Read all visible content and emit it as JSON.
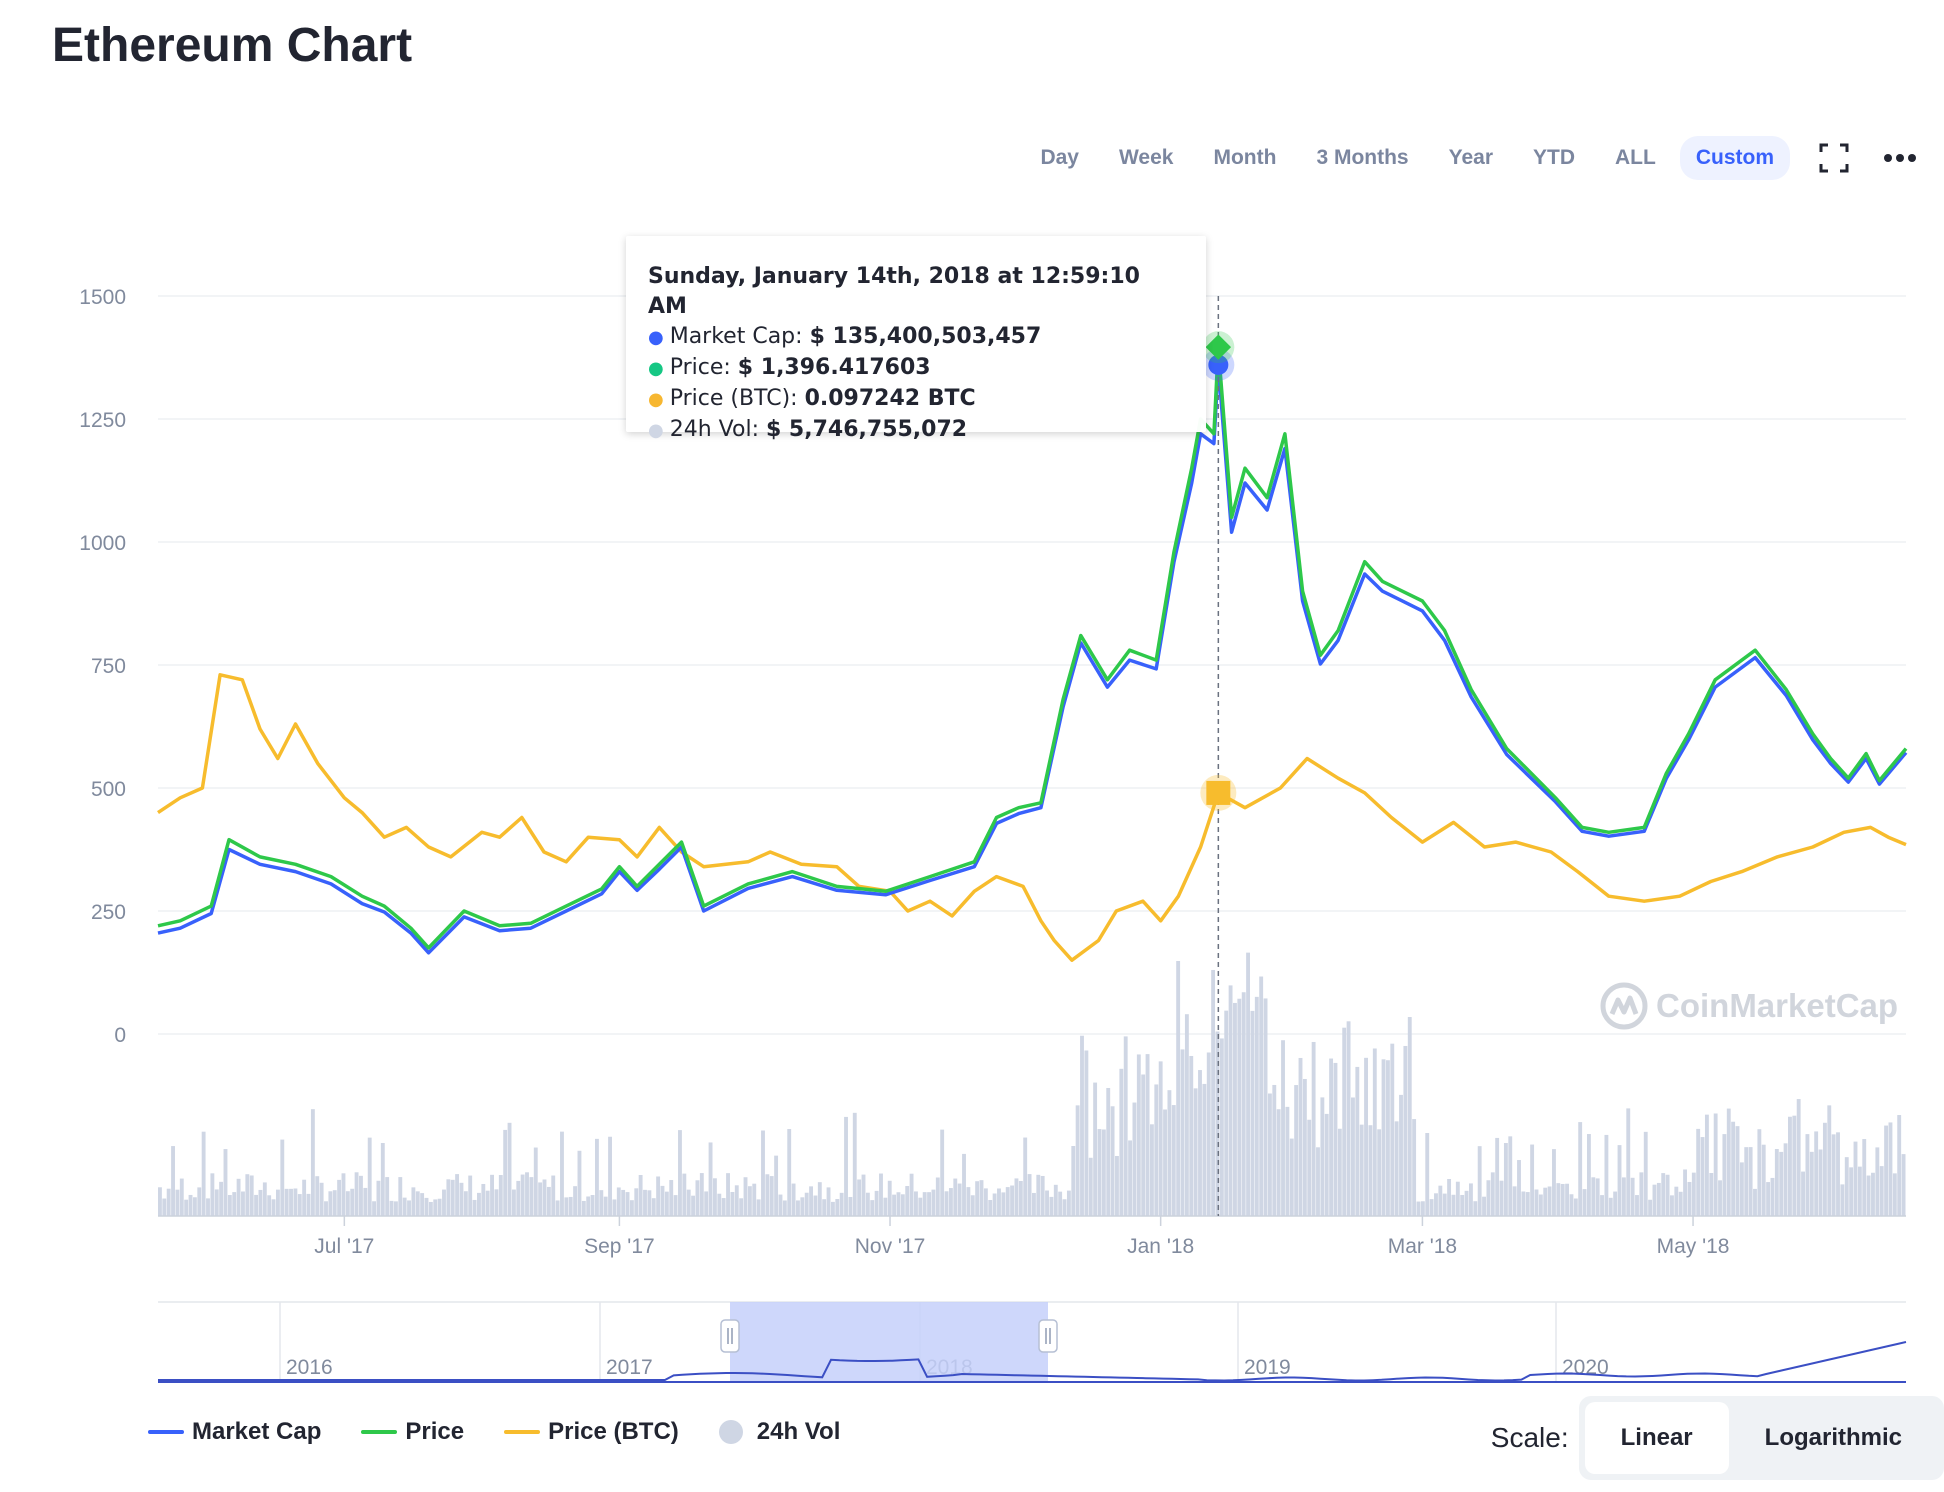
{
  "page_title": "Ethereum Chart",
  "range_buttons": [
    {
      "label": "Day"
    },
    {
      "label": "Week"
    },
    {
      "label": "Month"
    },
    {
      "label": "3 Months"
    },
    {
      "label": "Year"
    },
    {
      "label": "YTD"
    },
    {
      "label": "ALL"
    },
    {
      "label": "Custom",
      "active": true
    }
  ],
  "icons": {
    "fullscreen": "fullscreen-icon",
    "more": "more-dots-icon",
    "logo": "coinmarketcap-logo-icon"
  },
  "watermark": "CoinMarketCap",
  "tooltip": {
    "title": "Sunday, January 14th, 2018 at 12:59:10 AM",
    "rows": [
      {
        "label": "Market Cap: ",
        "value": "$ 135,400,503,457",
        "color": "#3861fb"
      },
      {
        "label": "Price: ",
        "value": "$ 1,396.417603",
        "color": "#16c784"
      },
      {
        "label": "Price (BTC): ",
        "value": "0.097242 BTC",
        "color": "#f7b731"
      },
      {
        "label": "24h Vol: ",
        "value": "$ 5,746,755,072",
        "color": "#cfd6e4"
      }
    ]
  },
  "legend": [
    {
      "label": "Market Cap",
      "color": "#3861fb",
      "kind": "line"
    },
    {
      "label": "Price",
      "color": "#16c784",
      "kind": "line"
    },
    {
      "label": "Price (BTC)",
      "color": "#f7b731",
      "kind": "line"
    },
    {
      "label": "24h Vol",
      "color": "#cfd6e4",
      "kind": "dot"
    }
  ],
  "scale": {
    "label": "Scale:",
    "options": [
      "Linear",
      "Logarithmic"
    ],
    "active": "Linear"
  },
  "colors": {
    "market_cap": "#3861fb",
    "price": "#2ec84a",
    "price_btc": "#f7bc2d",
    "volume": "#cfd6e4",
    "grid": "#eef0f3",
    "navigator_fill": "#c6d0fa"
  },
  "chart_data": {
    "type": "line",
    "x_start": "2017-05-20",
    "x_end": "2018-06-18",
    "y_ticks": [
      "1500",
      "1250",
      "1000",
      "750",
      "500",
      "250",
      "0"
    ],
    "ylim": [
      0,
      1500
    ],
    "x_ticks": [
      "Jul '17",
      "Sep '17",
      "Nov '17",
      "Jan '18",
      "Mar '18",
      "May '18"
    ],
    "grid": true,
    "series": [
      {
        "name": "Price",
        "x": [
          "2017-05-20",
          "2017-05-25",
          "2017-06-01",
          "2017-06-05",
          "2017-06-12",
          "2017-06-20",
          "2017-06-28",
          "2017-07-05",
          "2017-07-10",
          "2017-07-16",
          "2017-07-20",
          "2017-07-28",
          "2017-08-05",
          "2017-08-12",
          "2017-08-20",
          "2017-08-28",
          "2017-09-01",
          "2017-09-05",
          "2017-09-10",
          "2017-09-15",
          "2017-09-20",
          "2017-09-30",
          "2017-10-10",
          "2017-10-20",
          "2017-10-31",
          "2017-11-10",
          "2017-11-20",
          "2017-11-25",
          "2017-11-30",
          "2017-12-05",
          "2017-12-10",
          "2017-12-14",
          "2017-12-20",
          "2017-12-25",
          "2017-12-31",
          "2018-01-04",
          "2018-01-08",
          "2018-01-10",
          "2018-01-13",
          "2018-01-14",
          "2018-01-17",
          "2018-01-20",
          "2018-01-25",
          "2018-01-29",
          "2018-02-02",
          "2018-02-06",
          "2018-02-10",
          "2018-02-16",
          "2018-02-20",
          "2018-03-01",
          "2018-03-06",
          "2018-03-12",
          "2018-03-20",
          "2018-03-31",
          "2018-04-06",
          "2018-04-12",
          "2018-04-20",
          "2018-04-25",
          "2018-04-30",
          "2018-05-06",
          "2018-05-15",
          "2018-05-22",
          "2018-05-28",
          "2018-06-01",
          "2018-06-05",
          "2018-06-09",
          "2018-06-12",
          "2018-06-18"
        ],
        "values": [
          220,
          230,
          260,
          395,
          360,
          345,
          320,
          280,
          260,
          215,
          175,
          250,
          220,
          225,
          260,
          295,
          340,
          300,
          345,
          390,
          260,
          305,
          330,
          300,
          290,
          320,
          350,
          440,
          460,
          470,
          680,
          810,
          720,
          780,
          760,
          980,
          1150,
          1250,
          1220,
          1396,
          1050,
          1150,
          1090,
          1220,
          900,
          770,
          820,
          960,
          920,
          880,
          820,
          700,
          580,
          480,
          420,
          410,
          420,
          530,
          610,
          720,
          780,
          700,
          610,
          560,
          520,
          570,
          515,
          580
        ]
      },
      {
        "name": "Market Cap",
        "x": [
          "2017-05-20",
          "2017-05-25",
          "2017-06-01",
          "2017-06-05",
          "2017-06-12",
          "2017-06-20",
          "2017-06-28",
          "2017-07-05",
          "2017-07-10",
          "2017-07-16",
          "2017-07-20",
          "2017-07-28",
          "2017-08-05",
          "2017-08-12",
          "2017-08-20",
          "2017-08-28",
          "2017-09-01",
          "2017-09-05",
          "2017-09-10",
          "2017-09-15",
          "2017-09-20",
          "2017-09-30",
          "2017-10-10",
          "2017-10-20",
          "2017-10-31",
          "2017-11-10",
          "2017-11-20",
          "2017-11-25",
          "2017-11-30",
          "2017-12-05",
          "2017-12-10",
          "2017-12-14",
          "2017-12-20",
          "2017-12-25",
          "2017-12-31",
          "2018-01-04",
          "2018-01-08",
          "2018-01-10",
          "2018-01-13",
          "2018-01-14",
          "2018-01-17",
          "2018-01-20",
          "2018-01-25",
          "2018-01-29",
          "2018-02-02",
          "2018-02-06",
          "2018-02-10",
          "2018-02-16",
          "2018-02-20",
          "2018-03-01",
          "2018-03-06",
          "2018-03-12",
          "2018-03-20",
          "2018-03-31",
          "2018-04-06",
          "2018-04-12",
          "2018-04-20",
          "2018-04-25",
          "2018-04-30",
          "2018-05-06",
          "2018-05-15",
          "2018-05-22",
          "2018-05-28",
          "2018-06-01",
          "2018-06-05",
          "2018-06-09",
          "2018-06-12",
          "2018-06-18"
        ],
        "values": [
          205,
          215,
          245,
          375,
          345,
          330,
          305,
          265,
          248,
          205,
          165,
          238,
          210,
          215,
          250,
          285,
          330,
          292,
          335,
          380,
          250,
          296,
          320,
          292,
          283,
          312,
          340,
          428,
          448,
          460,
          665,
          795,
          705,
          760,
          742,
          960,
          1120,
          1220,
          1200,
          1360,
          1020,
          1120,
          1065,
          1190,
          880,
          752,
          800,
          935,
          900,
          860,
          800,
          685,
          568,
          472,
          412,
          402,
          412,
          520,
          598,
          705,
          765,
          688,
          598,
          550,
          512,
          560,
          508,
          572
        ]
      },
      {
        "name": "Price (BTC)",
        "x": [
          "2017-05-20",
          "2017-05-25",
          "2017-05-30",
          "2017-06-03",
          "2017-06-08",
          "2017-06-12",
          "2017-06-16",
          "2017-06-20",
          "2017-06-25",
          "2017-07-01",
          "2017-07-05",
          "2017-07-10",
          "2017-07-15",
          "2017-07-20",
          "2017-07-25",
          "2017-08-01",
          "2017-08-05",
          "2017-08-10",
          "2017-08-15",
          "2017-08-20",
          "2017-08-25",
          "2017-09-01",
          "2017-09-05",
          "2017-09-10",
          "2017-09-15",
          "2017-09-20",
          "2017-09-30",
          "2017-10-05",
          "2017-10-12",
          "2017-10-20",
          "2017-10-25",
          "2017-11-01",
          "2017-11-05",
          "2017-11-10",
          "2017-11-15",
          "2017-11-20",
          "2017-11-25",
          "2017-12-01",
          "2017-12-05",
          "2017-12-08",
          "2017-12-12",
          "2017-12-18",
          "2017-12-22",
          "2017-12-28",
          "2018-01-01",
          "2018-01-05",
          "2018-01-10",
          "2018-01-14",
          "2018-01-20",
          "2018-01-28",
          "2018-02-03",
          "2018-02-10",
          "2018-02-16",
          "2018-02-22",
          "2018-03-01",
          "2018-03-08",
          "2018-03-15",
          "2018-03-22",
          "2018-03-30",
          "2018-04-05",
          "2018-04-12",
          "2018-04-20",
          "2018-04-28",
          "2018-05-05",
          "2018-05-12",
          "2018-05-20",
          "2018-05-28",
          "2018-06-04",
          "2018-06-10",
          "2018-06-14",
          "2018-06-18"
        ],
        "values": [
          450,
          480,
          500,
          730,
          720,
          620,
          560,
          630,
          550,
          480,
          450,
          400,
          420,
          380,
          360,
          410,
          400,
          440,
          370,
          350,
          400,
          395,
          360,
          420,
          370,
          340,
          350,
          370,
          345,
          340,
          300,
          290,
          250,
          270,
          240,
          290,
          320,
          300,
          230,
          190,
          150,
          190,
          250,
          270,
          230,
          280,
          380,
          490,
          460,
          500,
          560,
          520,
          490,
          440,
          390,
          430,
          380,
          390,
          370,
          330,
          280,
          270,
          280,
          310,
          330,
          360,
          380,
          410,
          420,
          400,
          385
        ]
      }
    ],
    "volume_note": "24h Vol shown as bars, unscaled axis",
    "navigator": {
      "x_ticks": [
        "2016",
        "2017",
        "2018",
        "2019",
        "2020"
      ]
    }
  }
}
